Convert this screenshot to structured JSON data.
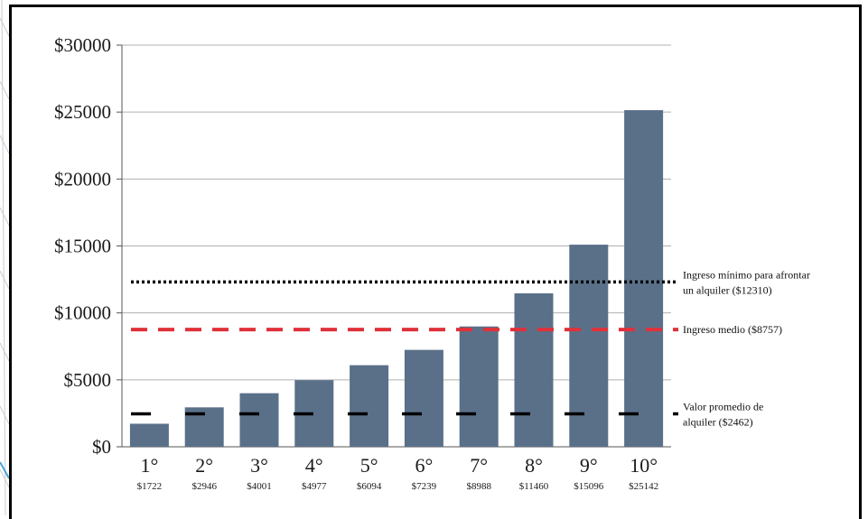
{
  "chart_data": {
    "type": "bar",
    "categories": [
      "1°",
      "2°",
      "3°",
      "4°",
      "5°",
      "6°",
      "7°",
      "8°",
      "9°",
      "10°"
    ],
    "category_values_labels": [
      "$1722",
      "$2946",
      "$4001",
      "$4977",
      "$6094",
      "$7239",
      "$8988",
      "$11460",
      "$15096",
      "$25142"
    ],
    "values": [
      1722,
      2946,
      4001,
      4977,
      6094,
      7239,
      8988,
      11460,
      15096,
      25142
    ],
    "ylim": [
      0,
      30000
    ],
    "yticks": [
      0,
      5000,
      10000,
      15000,
      20000,
      25000,
      30000
    ],
    "ytick_labels": [
      "$0",
      "$5000",
      "$10000",
      "$15000",
      "$20000",
      "$25000",
      "$30000"
    ],
    "grid": true,
    "bar_color": "#5a7089",
    "reference_lines": [
      {
        "value": 12310,
        "style": "dotted",
        "color": "#000000",
        "label_lines": [
          "Ingreso mínimo para afrontar",
          "un alquiler ($12310)"
        ]
      },
      {
        "value": 8757,
        "style": "dashed",
        "color": "#e0313a",
        "label_lines": [
          "Ingreso medio ($8757)"
        ]
      },
      {
        "value": 2462,
        "style": "long-dashed",
        "color": "#000000",
        "label_lines": [
          "Valor promedio de",
          "alquiler ($2462)"
        ]
      }
    ]
  }
}
